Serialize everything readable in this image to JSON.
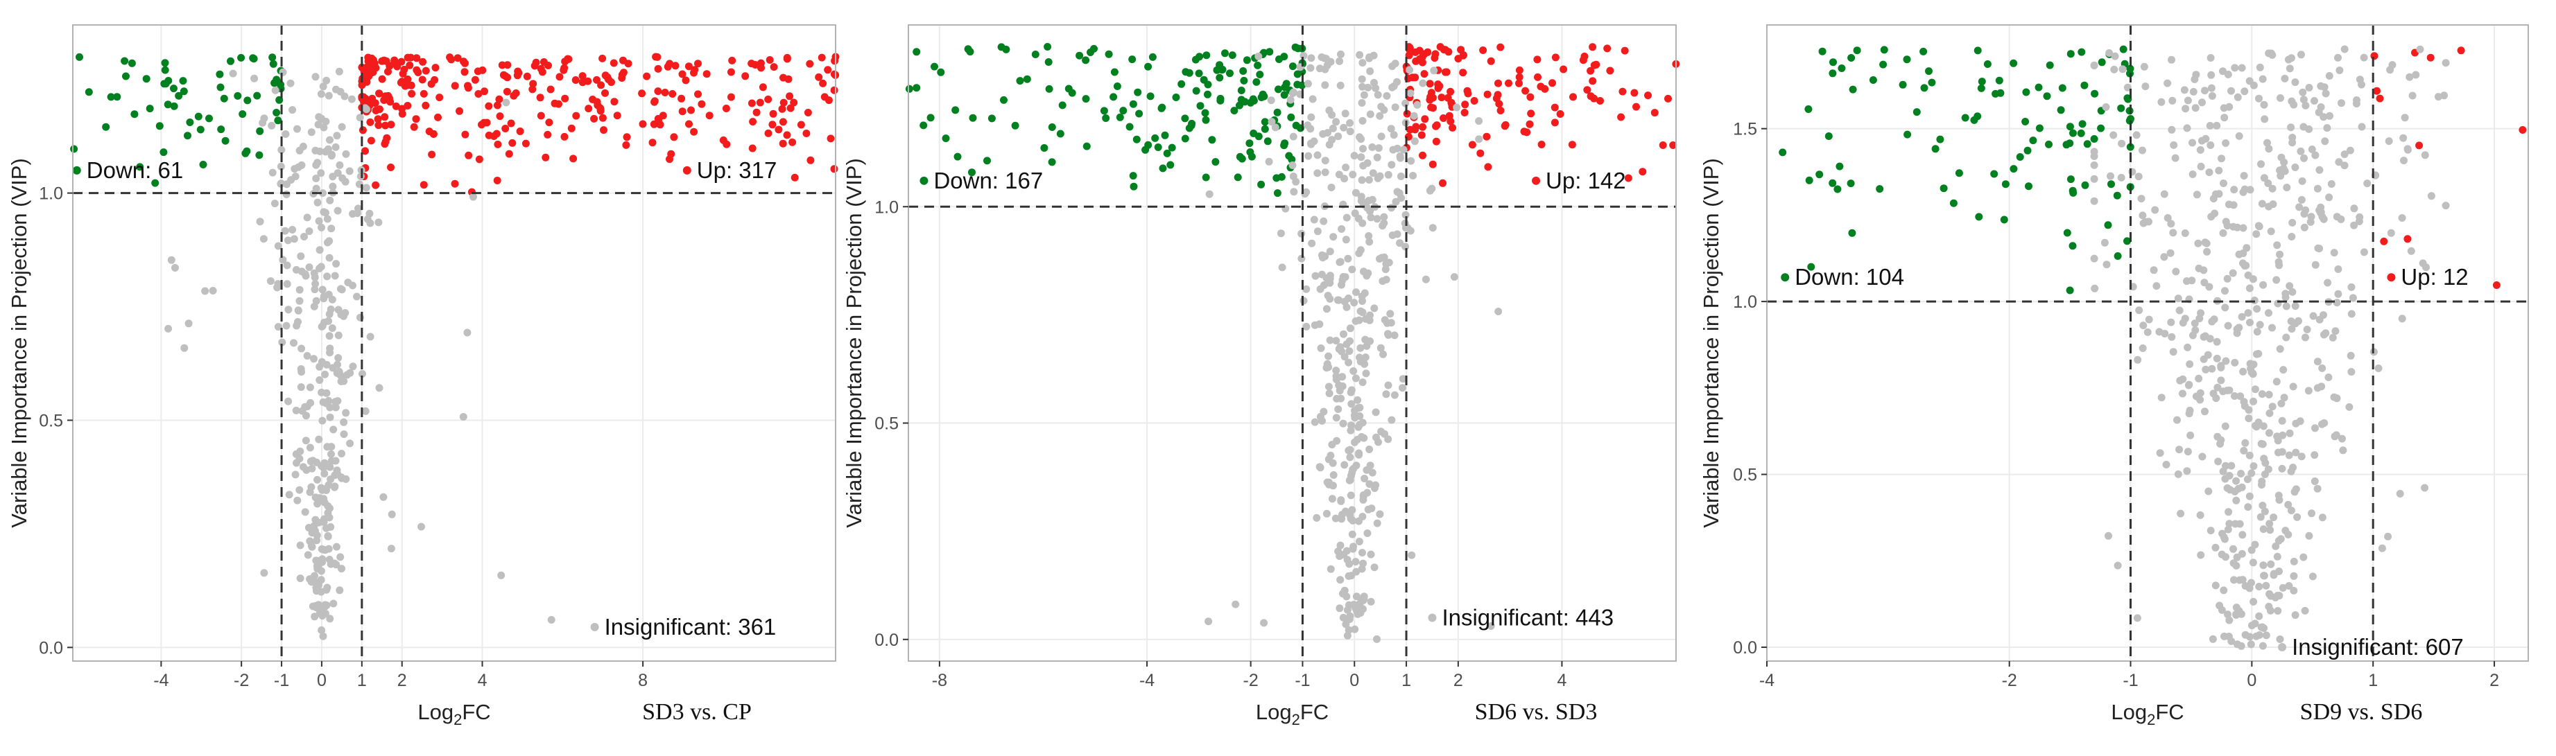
{
  "figure": {
    "background": "#ffffff",
    "grid_color": "#ebebeb",
    "border_color": "#b3b3b3",
    "threshold_line_color": "#333333",
    "colors": {
      "Down": "#00801f",
      "Up": "#f21c1c",
      "Insignificant": "#bfbfbf"
    }
  },
  "chart_data": [
    {
      "type": "scatter",
      "title": "SD3 vs. CP",
      "xlabel": "Log2FC",
      "ylabel": "Variable Importance in Projection (VIP)",
      "xlim": [
        -6.2,
        12.8
      ],
      "ylim": [
        -0.03,
        1.37
      ],
      "x_ticks": [
        -4,
        -2,
        -1,
        0,
        1,
        2,
        4,
        8
      ],
      "y_ticks": [
        0.0,
        0.5,
        1.0
      ],
      "y_tick_labels": [
        "0.0",
        "0.5",
        "1.0"
      ],
      "thresholds": {
        "x": [
          -1,
          1
        ],
        "y": 1.0
      },
      "grid": true,
      "annotations": [
        {
          "category": "Down",
          "text": "Down: 61",
          "x": -6.1,
          "y": 1.05
        },
        {
          "category": "Up",
          "text": "Up: 317",
          "x": 9.1,
          "y": 1.05
        },
        {
          "category": "Insignificant",
          "text": "Insignificant: 361",
          "x": 6.8,
          "y": 0.045
        }
      ],
      "series": [
        {
          "category": "Down",
          "count": 61,
          "x_range": [
            -6.2,
            -1.0
          ],
          "y_range": [
            1.0,
            1.3
          ]
        },
        {
          "category": "Up",
          "count": 317,
          "x_range": [
            1.0,
            12.8
          ],
          "y_range": [
            1.0,
            1.3
          ]
        },
        {
          "category": "Insignificant",
          "count": 361,
          "x_range": [
            -4.2,
            5.8
          ],
          "y_range": [
            0.0,
            1.27
          ]
        }
      ]
    },
    {
      "type": "scatter",
      "title": "SD6 vs. SD3",
      "xlabel": "Log2FC",
      "ylabel": "Variable Importance in Projection (VIP)",
      "xlim": [
        -8.6,
        6.2
      ],
      "ylim": [
        -0.05,
        1.42
      ],
      "x_ticks": [
        -8,
        -4,
        -2,
        -1,
        0,
        1,
        2,
        4
      ],
      "y_ticks": [
        0.0,
        0.5,
        1.0
      ],
      "y_tick_labels": [
        "0.0",
        "0.5",
        "1.0"
      ],
      "thresholds": {
        "x": [
          -1,
          1
        ],
        "y": 1.0
      },
      "grid": true,
      "annotations": [
        {
          "category": "Down",
          "text": "Down: 167",
          "x": -8.3,
          "y": 1.06
        },
        {
          "category": "Up",
          "text": "Up: 142",
          "x": 3.5,
          "y": 1.06
        },
        {
          "category": "Insignificant",
          "text": "Insignificant: 443",
          "x": 1.5,
          "y": 0.05
        }
      ],
      "series": [
        {
          "category": "Down",
          "count": 167,
          "x_range": [
            -8.6,
            -1.0
          ],
          "y_range": [
            1.0,
            1.37
          ]
        },
        {
          "category": "Up",
          "count": 142,
          "x_range": [
            1.0,
            6.2
          ],
          "y_range": [
            1.0,
            1.37
          ]
        },
        {
          "category": "Insignificant",
          "count": 443,
          "x_range": [
            -3.0,
            2.8
          ],
          "y_range": [
            0.0,
            1.36
          ]
        }
      ]
    },
    {
      "type": "scatter",
      "title": "SD9 vs. SD6",
      "xlabel": "Log2FC",
      "ylabel": "Variable Importance in Projection (VIP)",
      "xlim": [
        -4.0,
        2.28
      ],
      "ylim": [
        -0.04,
        1.8
      ],
      "x_ticks": [
        -4,
        -2,
        -1,
        0,
        1,
        2
      ],
      "y_ticks": [
        0.0,
        0.5,
        1.0,
        1.5
      ],
      "y_tick_labels": [
        "0.0",
        "0.5",
        "1.0",
        "1.5"
      ],
      "thresholds": {
        "x": [
          -1,
          1
        ],
        "y": 1.0
      },
      "grid": true,
      "annotations": [
        {
          "category": "Down",
          "text": "Down: 104",
          "x": -3.85,
          "y": 1.07
        },
        {
          "category": "Up",
          "text": "Up: 12",
          "x": 1.15,
          "y": 1.07
        },
        {
          "category": "Insignificant",
          "text": "Insignificant: 607",
          "x": 0.25,
          "y": 0.0
        }
      ],
      "series": [
        {
          "category": "Down",
          "count": 104,
          "x_range": [
            -4.0,
            -1.0
          ],
          "y_range": [
            1.0,
            1.73
          ]
        },
        {
          "category": "Up",
          "count": 12,
          "x_range": [
            1.0,
            2.28
          ],
          "y_range": [
            1.0,
            1.73
          ]
        },
        {
          "category": "Insignificant",
          "count": 607,
          "x_range": [
            -1.3,
            1.6
          ],
          "y_range": [
            0.0,
            1.73
          ]
        }
      ]
    }
  ]
}
